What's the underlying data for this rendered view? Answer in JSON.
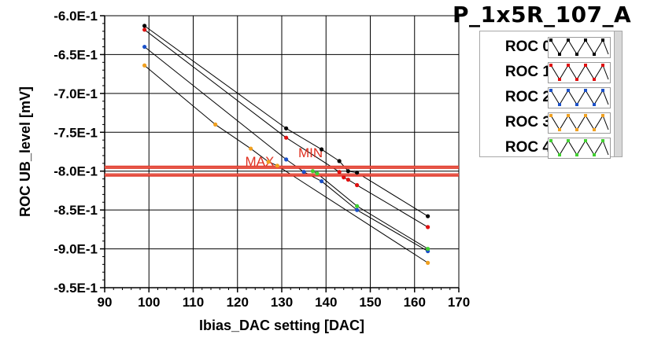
{
  "title": "P_1x5R_107_A",
  "chart_data": {
    "type": "scatter",
    "title": "P_1x5R_107_A",
    "xlabel": "Ibias_DAC setting [DAC]",
    "ylabel": "ROC UB_level [mV]",
    "xlim": [
      90,
      170
    ],
    "ylim": [
      -0.95,
      -0.6
    ],
    "x_ticks": [
      90,
      100,
      110,
      120,
      130,
      140,
      150,
      160,
      170
    ],
    "x_tick_labels": [
      "90",
      "100",
      "110",
      "120",
      "130",
      "140",
      "150",
      "160",
      "170"
    ],
    "y_ticks": [
      -0.6,
      -0.65,
      -0.7,
      -0.75,
      -0.8,
      -0.85,
      -0.9,
      -0.95
    ],
    "y_tick_labels": [
      "-6.0E-1",
      "-6.5E-1",
      "-7.0E-1",
      "-7.5E-1",
      "-8.0E-1",
      "-8.5E-1",
      "-9.0E-1",
      "-9.5E-1"
    ],
    "grid": true,
    "legend_position": "right",
    "series": [
      {
        "name": "ROC 0",
        "color": "#000000",
        "points": [
          [
            99,
            -0.613
          ],
          [
            131,
            -0.745
          ],
          [
            139,
            -0.772
          ],
          [
            143,
            -0.787
          ],
          [
            145,
            -0.8
          ],
          [
            147,
            -0.802
          ],
          [
            163,
            -0.858
          ]
        ]
      },
      {
        "name": "ROC 1",
        "color": "#e01010",
        "points": [
          [
            99,
            -0.618
          ],
          [
            131,
            -0.757
          ],
          [
            143,
            -0.801
          ],
          [
            144,
            -0.808
          ],
          [
            145,
            -0.811
          ],
          [
            147,
            -0.818
          ],
          [
            163,
            -0.872
          ]
        ]
      },
      {
        "name": "ROC 2",
        "color": "#1a50c8",
        "points": [
          [
            99,
            -0.64
          ],
          [
            131,
            -0.785
          ],
          [
            135,
            -0.801
          ],
          [
            139,
            -0.813
          ],
          [
            147,
            -0.85
          ],
          [
            163,
            -0.903
          ]
        ]
      },
      {
        "name": "ROC 3",
        "color": "#f0a020",
        "points": [
          [
            99,
            -0.664
          ],
          [
            115,
            -0.74
          ],
          [
            123,
            -0.771
          ],
          [
            127,
            -0.788
          ],
          [
            129,
            -0.793
          ],
          [
            163,
            -0.918
          ]
        ]
      },
      {
        "name": "ROC 4",
        "color": "#40d030",
        "points": [
          [
            137,
            -0.8
          ],
          [
            138,
            -0.803
          ],
          [
            147,
            -0.845
          ],
          [
            163,
            -0.9
          ]
        ]
      }
    ],
    "thresholds": [
      {
        "label": "MAX",
        "value": -0.795,
        "color": "#e03020"
      },
      {
        "label": "MIN",
        "value": -0.805,
        "color": "#e03020"
      }
    ]
  }
}
